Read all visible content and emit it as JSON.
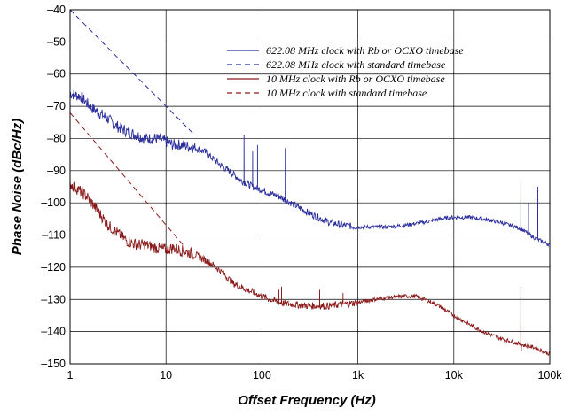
{
  "chart_data": {
    "type": "line",
    "title": "",
    "xlabel": "Offset Frequency (Hz)",
    "ylabel": "Phase Noise (dBc/Hz)",
    "xscale": "log",
    "xlim": [
      1,
      100000
    ],
    "ylim": [
      -150,
      -40
    ],
    "x_ticks": [
      1,
      10,
      100,
      1000,
      10000,
      100000
    ],
    "x_tick_labels": [
      "1",
      "10",
      "100",
      "1k",
      "10k",
      "100k"
    ],
    "y_ticks": [
      -40,
      -50,
      -60,
      -70,
      -80,
      -90,
      -100,
      -110,
      -120,
      -130,
      -140,
      -150
    ],
    "y_tick_labels": [
      "–40",
      "–50",
      "–60",
      "–70",
      "–80",
      "–90",
      "–100",
      "–110",
      "–120",
      "–130",
      "–140",
      "–150"
    ],
    "grid": true,
    "legend_position": "top-right",
    "series": [
      {
        "name": "622.08 MHz clock with Rb or OCXO timebase",
        "color": "#2b2e9c",
        "style": "solid",
        "x": [
          1,
          1.3,
          1.6,
          2,
          2.5,
          3,
          4,
          5,
          6,
          8,
          10,
          12,
          15,
          20,
          25,
          30,
          40,
          50,
          60,
          70,
          80,
          100,
          120,
          150,
          200,
          300,
          500,
          700,
          1000,
          2000,
          3000,
          5000,
          7000,
          10000,
          15000,
          20000,
          30000,
          50000,
          70000,
          100000
        ],
        "y": [
          -66,
          -67,
          -70,
          -72,
          -74,
          -76,
          -78,
          -79,
          -80,
          -80,
          -81,
          -82,
          -82,
          -83,
          -84,
          -86,
          -89,
          -91,
          -93,
          -94,
          -95,
          -96,
          -97,
          -98,
          -100,
          -103,
          -106,
          -107,
          -107.5,
          -107.5,
          -107,
          -106,
          -105,
          -104.5,
          -104.5,
          -105,
          -106,
          -108,
          -111,
          -113
        ],
        "spikes": [
          [
            65,
            -79
          ],
          [
            80,
            -84
          ],
          [
            90,
            -82
          ],
          [
            175,
            -83
          ],
          [
            50000,
            -93
          ],
          [
            60000,
            -100
          ],
          [
            75000,
            -95
          ]
        ]
      },
      {
        "name": "622.08 MHz clock with standard timebase",
        "color": "#2b2e9c",
        "style": "dashed",
        "x": [
          1,
          20
        ],
        "y": [
          -40,
          -79
        ]
      },
      {
        "name": "10 MHz clock with Rb or OCXO timebase",
        "color": "#8b1a1a",
        "style": "solid",
        "x": [
          1,
          1.5,
          2,
          2.5,
          3,
          4,
          5,
          6,
          8,
          10,
          12,
          15,
          20,
          30,
          40,
          50,
          70,
          100,
          150,
          200,
          300,
          500,
          700,
          1000,
          1500,
          2000,
          3000,
          4000,
          5000,
          7000,
          10000,
          15000,
          20000,
          30000,
          50000,
          70000,
          100000
        ],
        "y": [
          -94,
          -98,
          -103,
          -107,
          -109,
          -112,
          -113,
          -113,
          -114,
          -114.5,
          -114,
          -115,
          -116,
          -119,
          -122,
          -125,
          -127,
          -129,
          -131,
          -131.5,
          -132,
          -132,
          -131.5,
          -131,
          -130,
          -129.5,
          -129,
          -129,
          -130,
          -132,
          -135,
          -138,
          -140,
          -142,
          -144,
          -145,
          -147
        ],
        "spikes": [
          [
            150,
            -127
          ],
          [
            160,
            -126
          ],
          [
            400,
            -127
          ],
          [
            700,
            -128
          ],
          [
            50000,
            -126
          ],
          [
            50500,
            -146
          ]
        ]
      },
      {
        "name": "10 MHz clock with standard timebase",
        "color": "#8b1a1a",
        "style": "dashed",
        "x": [
          1,
          15
        ],
        "y": [
          -72,
          -113
        ]
      }
    ]
  }
}
